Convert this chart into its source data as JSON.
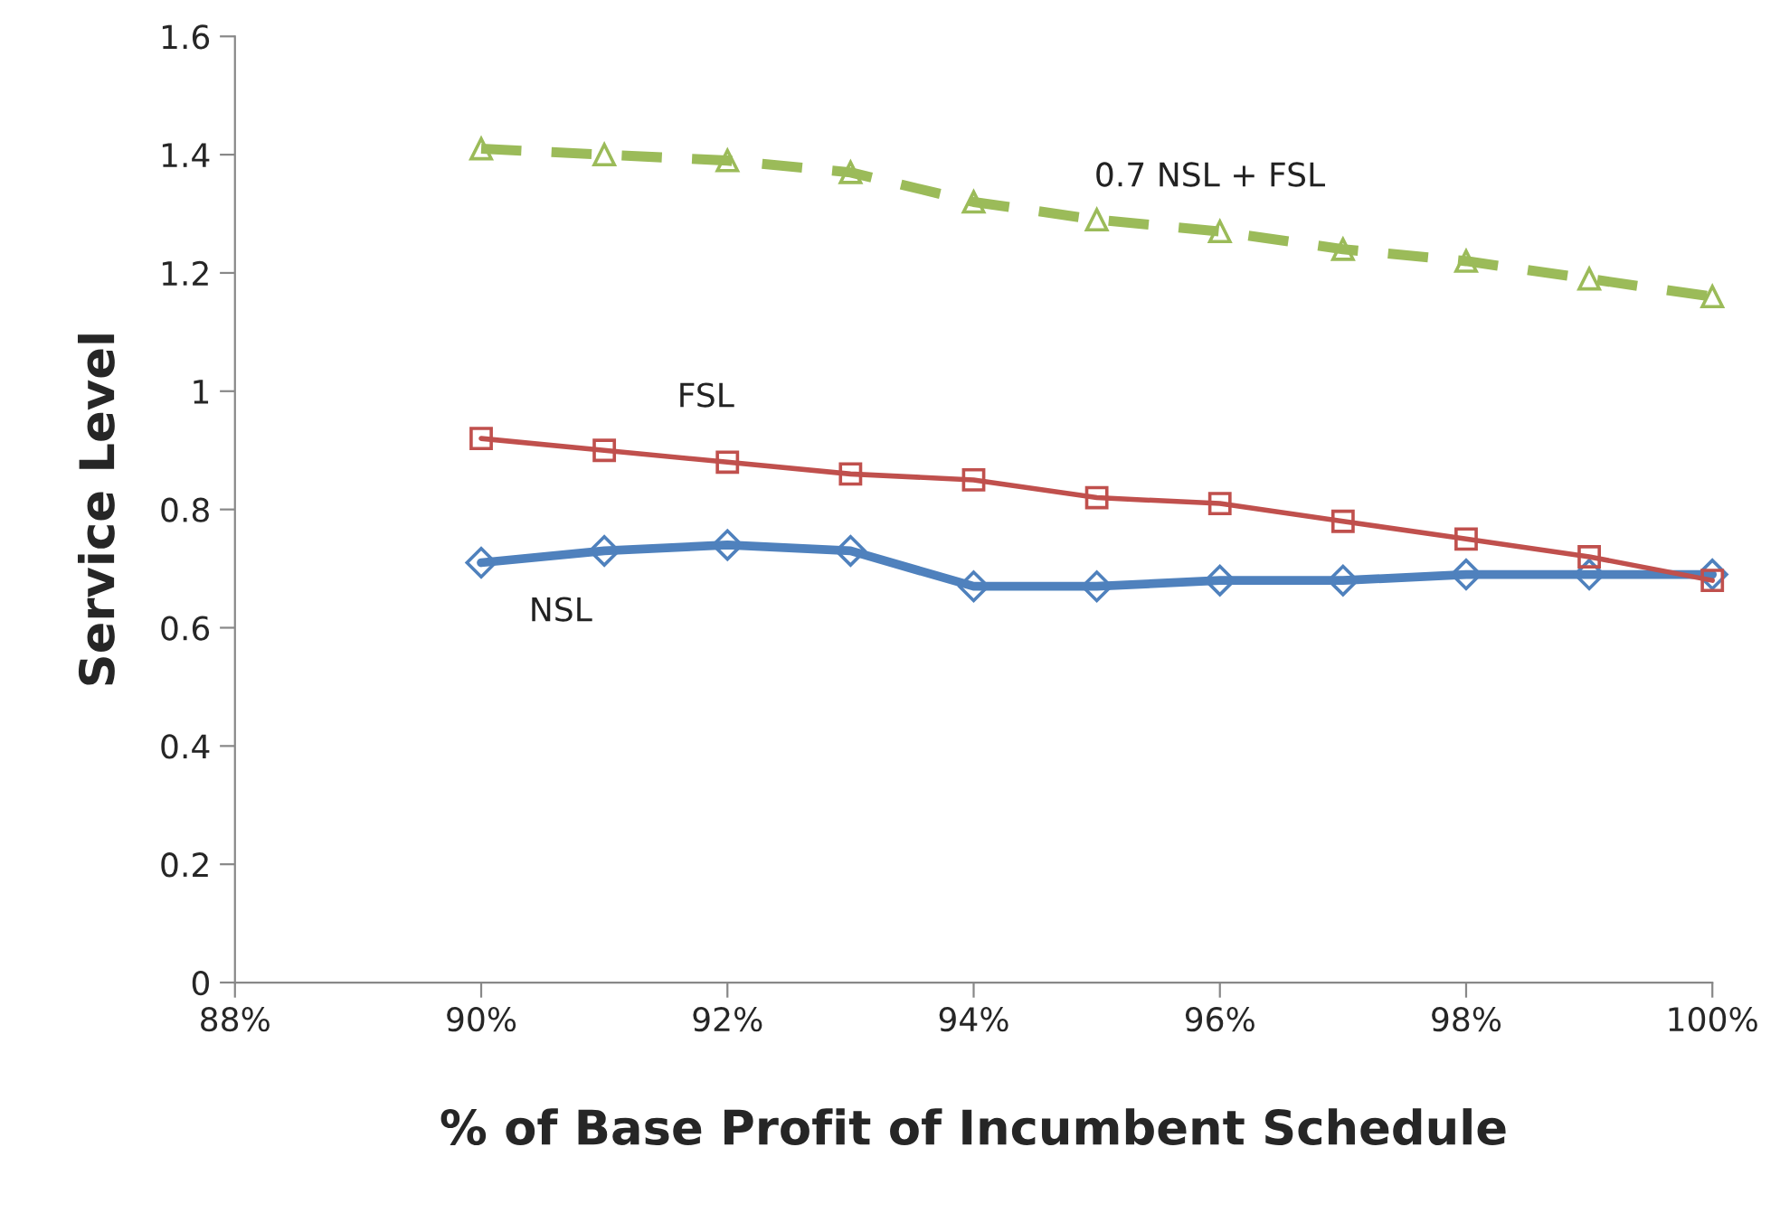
{
  "chart_data": {
    "type": "line",
    "xlabel": "% of Base Profit of Incumbent Schedule",
    "ylabel": "Service Level",
    "x": [
      90,
      91,
      92,
      93,
      94,
      95,
      96,
      97,
      98,
      99,
      100
    ],
    "series": [
      {
        "name": "0.7 NSL + FSL",
        "color": "#9bbb59",
        "marker": "triangle",
        "line_style": "dashed",
        "values": [
          1.41,
          1.4,
          1.39,
          1.37,
          1.32,
          1.29,
          1.27,
          1.24,
          1.22,
          1.19,
          1.16
        ]
      },
      {
        "name": "FSL",
        "color": "#c0504d",
        "marker": "square",
        "line_style": "solid",
        "values": [
          0.92,
          0.9,
          0.88,
          0.86,
          0.85,
          0.82,
          0.81,
          0.78,
          0.75,
          0.72,
          0.68
        ]
      },
      {
        "name": "NSL",
        "color": "#4f81bd",
        "marker": "diamond",
        "line_style": "solid",
        "values": [
          0.71,
          0.73,
          0.74,
          0.73,
          0.67,
          0.67,
          0.68,
          0.68,
          0.69,
          0.69,
          0.69
        ]
      }
    ],
    "xlim": [
      88,
      100
    ],
    "xticks": [
      {
        "value": 88,
        "label": "88%"
      },
      {
        "value": 90,
        "label": "90%"
      },
      {
        "value": 92,
        "label": "92%"
      },
      {
        "value": 94,
        "label": "94%"
      },
      {
        "value": 96,
        "label": "96%"
      },
      {
        "value": 98,
        "label": "98%"
      },
      {
        "value": 100,
        "label": "100%"
      }
    ],
    "ylim": [
      0,
      1.6
    ],
    "yticks": [
      0,
      0.2,
      0.4,
      0.6,
      0.8,
      1,
      1.2,
      1.4,
      1.6
    ],
    "grid": false,
    "legend": false
  }
}
